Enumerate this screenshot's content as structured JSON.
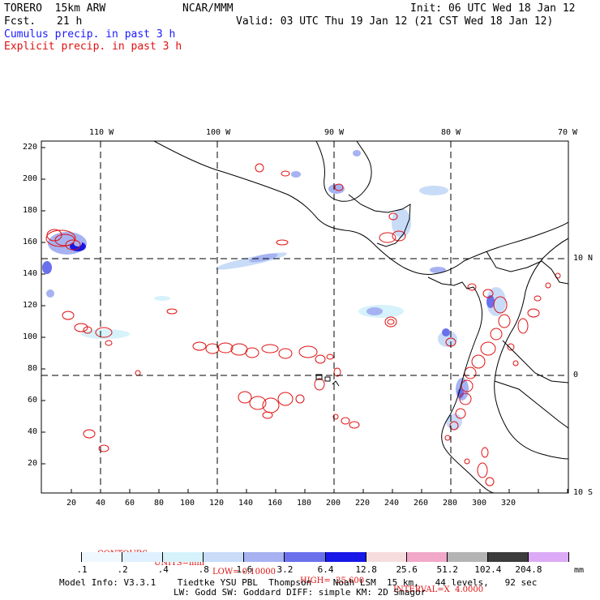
{
  "header": {
    "model": "TORERO  15km ARW",
    "center": "NCAR/MMM",
    "init": "Init: 06 UTC Wed 18 Jan 12",
    "fcst_label": "Fcst.",
    "fcst_hours": "21 h",
    "valid": "Valid: 03 UTC Thu 19 Jan 12 (21 CST Wed 18 Jan 12)",
    "legend_cumulus": "Cumulus precip. in past 3 h",
    "legend_explicit": "Explicit precip. in past 3 h"
  },
  "map": {
    "lon_labels": [
      "110 W",
      "100 W",
      "90 W",
      "80 W",
      "70 W"
    ],
    "lat_labels": [
      "10 N",
      "0",
      "10 S"
    ],
    "grid_x_labels": [
      "20",
      "40",
      "60",
      "80",
      "100",
      "120",
      "140",
      "160",
      "180",
      "200",
      "220",
      "240",
      "260",
      "280",
      "300",
      "320"
    ],
    "grid_y_labels": [
      "220",
      "200",
      "180",
      "160",
      "140",
      "120",
      "100",
      "80",
      "60",
      "40",
      "20"
    ]
  },
  "contours": {
    "label": "CONTOURS:",
    "units": "UNITS=mm",
    "low": "LOW= 0.10000",
    "high": "HIGH=  25.600",
    "interval": "INTERVAL=X  4.0000"
  },
  "colorbar": {
    "labels": [
      ".1",
      ".2",
      ".4",
      ".8",
      "1.6",
      "3.2",
      "6.4",
      "12.8",
      "25.6",
      "51.2",
      "102.4",
      "204.8"
    ],
    "units": "mm",
    "colors": [
      "#ffffff",
      "#f0f8ff",
      "#e0f0ff",
      "#d6f2fa",
      "#c8dcf8",
      "#a6b2f2",
      "#6a70ec",
      "#1818e8",
      "#f6dcdc",
      "#f2a8c8",
      "#b4b4b4",
      "#3c3c3c",
      "#dcaaf6"
    ]
  },
  "footer": {
    "line1": "Model Info: V3.3.1    Tiedtke YSU PBL  Thompson    Noah LSM  15 km,   44 levels,   92 sec",
    "line2": "LW: Godd SW: Goddard DIFF: simple KM: 2D Smagor"
  }
}
